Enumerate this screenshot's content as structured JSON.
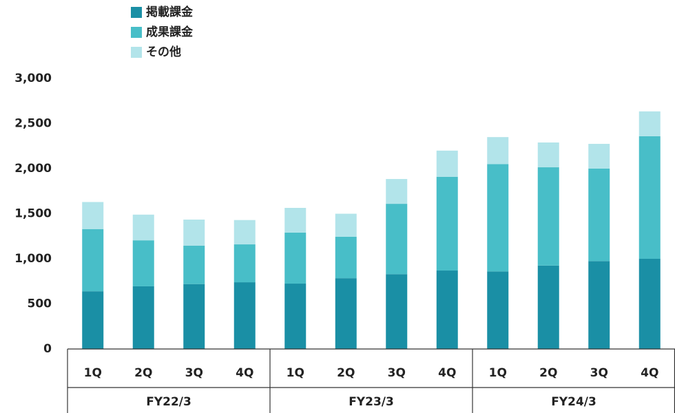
{
  "chart_data": {
    "type": "stacked_bar",
    "categories": [
      "1Q",
      "2Q",
      "3Q",
      "4Q",
      "1Q",
      "2Q",
      "3Q",
      "4Q",
      "1Q",
      "2Q",
      "3Q",
      "4Q"
    ],
    "groups": [
      "FY22/3",
      "FY23/3",
      "FY24/3"
    ],
    "series": [
      {
        "name": "掲載課金",
        "color": "#1a8fa5",
        "values": [
          640,
          695,
          720,
          740,
          725,
          785,
          830,
          870,
          860,
          925,
          975,
          1000
        ]
      },
      {
        "name": "成果課金",
        "color": "#48bec8",
        "values": [
          690,
          510,
          425,
          420,
          565,
          460,
          780,
          1040,
          1190,
          1090,
          1025,
          1360
        ]
      },
      {
        "name": "その他",
        "color": "#b2e4ea",
        "values": [
          300,
          285,
          290,
          270,
          275,
          255,
          275,
          290,
          300,
          275,
          275,
          275
        ]
      }
    ],
    "ylim": [
      0,
      3000
    ],
    "yticks": [
      0,
      500,
      {
        "value": 1000,
        "label": "1,000"
      },
      {
        "value": 1500,
        "label": "1,500"
      },
      {
        "value": 2000,
        "label": "2,000"
      },
      {
        "value": 2500,
        "label": "2,500"
      },
      {
        "value": 3000,
        "label": "3,000"
      }
    ],
    "grid": false
  }
}
